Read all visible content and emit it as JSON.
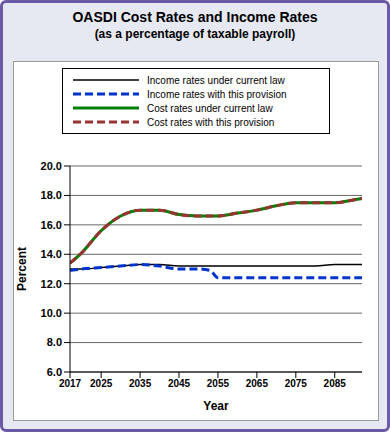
{
  "chart_data": {
    "type": "line",
    "title": "OASDI Cost Rates and Income Rates",
    "subtitle": "(as a percentage of taxable payroll)",
    "x_label": "Year",
    "y_label": "Percent",
    "x": [
      2017,
      2020,
      2025,
      2030,
      2035,
      2040,
      2045,
      2050,
      2053,
      2055,
      2060,
      2065,
      2070,
      2075,
      2080,
      2085,
      2090,
      2092
    ],
    "series": [
      {
        "name": "Income rates under current law",
        "color": "#000000",
        "line_style": "solid",
        "values": [
          13.0,
          13.0,
          13.1,
          13.2,
          13.3,
          13.3,
          13.2,
          13.2,
          13.2,
          13.2,
          13.2,
          13.2,
          13.2,
          13.2,
          13.2,
          13.3,
          13.3,
          13.3
        ]
      },
      {
        "name": "Income rates with this provision",
        "color": "#0033cc",
        "line_style": "dashed",
        "values": [
          12.9,
          13.0,
          13.1,
          13.2,
          13.3,
          13.2,
          13.0,
          13.0,
          12.9,
          12.4,
          12.4,
          12.4,
          12.4,
          12.4,
          12.4,
          12.4,
          12.4,
          12.4
        ]
      },
      {
        "name": "Cost rates under current law",
        "color": "#008000",
        "line_style": "solid",
        "values": [
          13.4,
          14.1,
          15.6,
          16.6,
          17.0,
          17.0,
          16.7,
          16.6,
          16.6,
          16.6,
          16.8,
          17.0,
          17.3,
          17.5,
          17.5,
          17.5,
          17.7,
          17.8
        ]
      },
      {
        "name": "Cost rates with this provision",
        "color": "#993333",
        "line_style": "dashed",
        "values": [
          13.4,
          14.1,
          15.6,
          16.6,
          17.0,
          17.0,
          16.7,
          16.6,
          16.6,
          16.6,
          16.8,
          17.0,
          17.3,
          17.5,
          17.5,
          17.5,
          17.7,
          17.8
        ]
      }
    ],
    "xlim": [
      2017,
      2092
    ],
    "xticks": [
      2017,
      2025,
      2035,
      2045,
      2055,
      2065,
      2075,
      2085
    ],
    "ylim": [
      6,
      20
    ],
    "yticks": [
      {
        "value": 6,
        "label": "6.0"
      },
      {
        "value": 8,
        "label": "8.0"
      },
      {
        "value": 10,
        "label": "10.0"
      },
      {
        "value": 12,
        "label": "12.0"
      },
      {
        "value": 14,
        "label": "14.0"
      },
      {
        "value": 16,
        "label": "16.0"
      },
      {
        "value": 18,
        "label": "18.0"
      },
      {
        "value": 20,
        "label": "20.0"
      }
    ],
    "grid": true,
    "legend": "top"
  }
}
